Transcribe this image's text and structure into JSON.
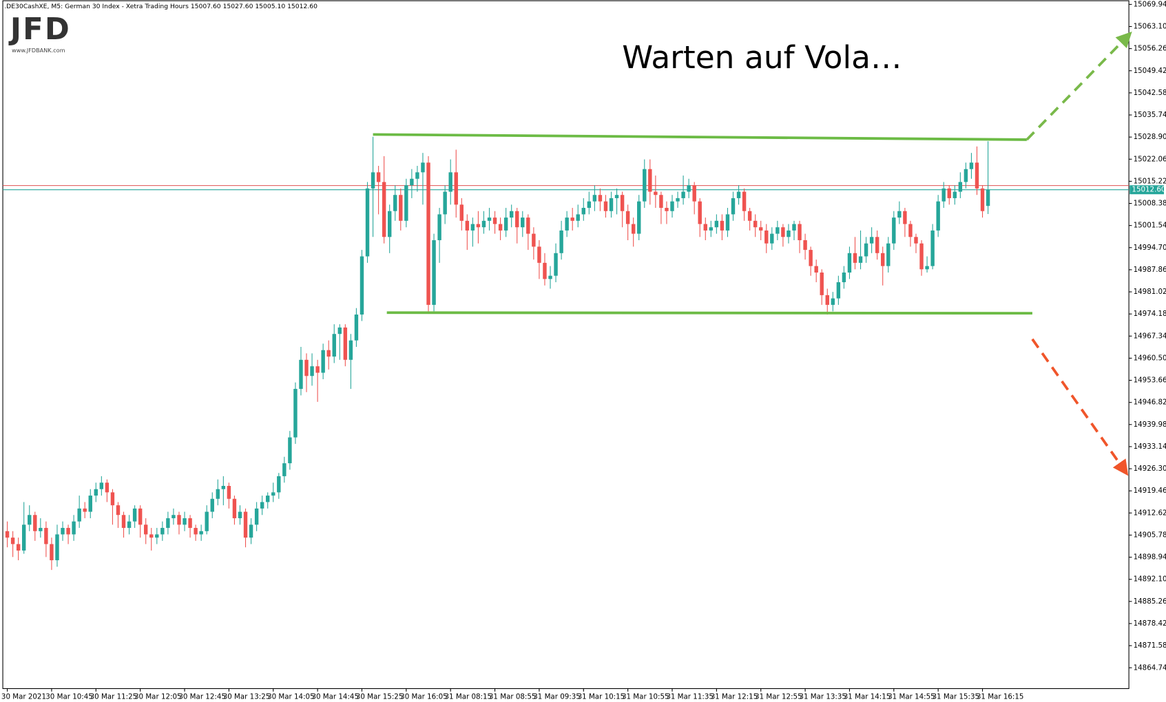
{
  "header": {
    "symbol_line": ".DE30CashXE, M5:  German 30 Index  - Xetra Trading Hours  15007.60 15027.60 15005.10 15012.60",
    "logo": "JFD",
    "logo_url": "www.JFDBANK.com"
  },
  "chart_data": {
    "type": "candlestick",
    "title": "Warten auf Vola…",
    "up_color": "#26a69a",
    "down_color": "#ef5350",
    "ylim": [
      14858.3,
      15071.3
    ],
    "yticks": [
      15069.94,
      {
        "value": 15063.1,
        "label": "15063.10"
      },
      15056.26,
      15049.42,
      15042.58,
      15035.74,
      {
        "value": 15028.9,
        "label": "15028.90"
      },
      15022.06,
      15015.22,
      15008.38,
      15001.54,
      {
        "value": 14994.7,
        "label": "14994.70"
      },
      14987.86,
      14981.02,
      14974.18,
      14967.34,
      {
        "value": 14960.5,
        "label": "14960.50"
      },
      14953.66,
      14946.82,
      14939.98,
      14933.14,
      {
        "value": 14926.3,
        "label": "14926.30"
      },
      14919.46,
      14912.62,
      14905.78,
      14898.94,
      {
        "value": 14892.1,
        "label": "14892.10"
      },
      14885.26,
      14878.42,
      14871.58,
      14864.74
    ],
    "categories": [
      "30 Mar 2021",
      null,
      null,
      null,
      null,
      null,
      null,
      null,
      "30 Mar 10:45",
      null,
      null,
      null,
      null,
      null,
      null,
      null,
      "30 Mar 11:25",
      null,
      null,
      null,
      null,
      null,
      null,
      null,
      "30 Mar 12:05",
      null,
      null,
      null,
      null,
      null,
      null,
      null,
      "30 Mar 12:45",
      null,
      null,
      null,
      null,
      null,
      null,
      null,
      "30 Mar 13:25",
      null,
      null,
      null,
      null,
      null,
      null,
      null,
      "30 Mar 14:05",
      null,
      null,
      null,
      null,
      null,
      null,
      null,
      "30 Mar 14:45",
      null,
      null,
      null,
      null,
      null,
      null,
      null,
      "30 Mar 15:25",
      null,
      null,
      null,
      null,
      null,
      null,
      null,
      "30 Mar 16:05",
      null,
      null,
      null,
      null,
      null,
      null,
      null,
      "31 Mar 08:15",
      null,
      null,
      null,
      null,
      null,
      null,
      null,
      "31 Mar 08:55",
      null,
      null,
      null,
      null,
      null,
      null,
      null,
      "31 Mar 09:35",
      null,
      null,
      null,
      null,
      null,
      null,
      null,
      "31 Mar 10:15",
      null,
      null,
      null,
      null,
      null,
      null,
      null,
      "31 Mar 10:55",
      null,
      null,
      null,
      null,
      null,
      null,
      null,
      "31 Mar 11:35",
      null,
      null,
      null,
      null,
      null,
      null,
      null,
      "31 Mar 12:15",
      null,
      null,
      null,
      null,
      null,
      null,
      null,
      "31 Mar 12:55",
      null,
      null,
      null,
      null,
      null,
      null,
      null,
      "31 Mar 13:35",
      null,
      null,
      null,
      null,
      null,
      null,
      null,
      "31 Mar 14:15",
      null,
      null,
      null,
      null,
      null,
      null,
      null,
      "31 Mar 14:55",
      null,
      null,
      null,
      null,
      null,
      null,
      null,
      "31 Mar 15:35",
      null,
      null,
      null,
      null,
      null,
      null,
      null,
      "31 Mar 16:15",
      null
    ],
    "open": [
      14907,
      14905,
      14903,
      14901,
      14909,
      14912,
      14907,
      14908,
      14903,
      14898,
      14906,
      14908,
      14906,
      14910,
      14914,
      14913,
      14918,
      14920,
      14922,
      14919,
      14915,
      14912,
      14908,
      14910,
      14914,
      14909,
      14906,
      14905,
      14906,
      14908,
      14911,
      14912,
      14909,
      14911,
      14908,
      14906,
      14907,
      14913,
      14917,
      14920,
      14921,
      14917,
      14911,
      14913,
      14905,
      14909,
      14914,
      14916,
      14918,
      14919,
      14924,
      14928,
      14936,
      14951,
      14960,
      14955,
      14958,
      14956,
      14963,
      14961,
      14968,
      14970,
      14960,
      14966,
      14974,
      14992,
      15013,
      15018,
      15015,
      14998,
      15006,
      15011,
      15003,
      15014,
      15016,
      15018,
      15021,
      14977,
      14997,
      15005,
      15012,
      15018,
      15008,
      15003,
      15000,
      15002,
      15001,
      15003,
      15004,
      15002,
      15000,
      15004,
      15006,
      15001,
      15004,
      14999,
      14995,
      14990,
      14985,
      14986,
      14993,
      15000,
      15004,
      15003,
      15005,
      15007,
      15009,
      15011,
      15009,
      15006,
      15010,
      15011,
      15006,
      15002,
      14999,
      15009,
      15019,
      15012,
      15011,
      15007,
      15006,
      15009,
      15010,
      15012,
      15014,
      15009,
      15002,
      15000,
      15001,
      15003,
      15000,
      15005,
      15010,
      15012,
      15006,
      15003,
      15001,
      15000,
      14996,
      14999,
      15001,
      14998,
      15000,
      15002,
      14997,
      14994,
      14989,
      14987,
      14980,
      14977,
      14979,
      14984,
      14987,
      14993,
      14990,
      14992,
      14996,
      14998,
      14993,
      14989,
      14996,
      15004,
      15006,
      15002,
      14998,
      14996,
      14988,
      14989,
      15000,
      15009,
      15013,
      15010,
      15012,
      15015,
      15019,
      15021,
      15013,
      15007.6
    ],
    "high": [
      14910,
      14907,
      14905,
      14916,
      14915,
      14913,
      14911,
      14910,
      14905,
      14909,
      14910,
      14909,
      14912,
      14918,
      14916,
      14920,
      14922,
      14924,
      14923,
      14920,
      14916,
      14913,
      14912,
      14915,
      14915,
      14911,
      14908,
      14908,
      14910,
      14913,
      14914,
      14913,
      14913,
      14912,
      14909,
      14909,
      14915,
      14919,
      14923,
      14924,
      14922,
      14918,
      14915,
      14914,
      14911,
      14916,
      14918,
      14919,
      14922,
      14925,
      14930,
      14938,
      14953,
      14964,
      14962,
      14962,
      14960,
      14965,
      14966,
      14971,
      14971,
      14971,
      14968,
      14976,
      14994,
      15015,
      15029,
      15020,
      15023,
      15008,
      15014,
      15013,
      15016,
      15019,
      15020,
      15024,
      15023,
      14999,
      15007,
      15014,
      15022,
      15025,
      15010,
      15005,
      15004,
      15006,
      15006,
      15007,
      15006,
      15004,
      15007,
      15008,
      15007,
      15006,
      15005,
      15001,
      14997,
      14993,
      14989,
      14996,
      15003,
      15006,
      15007,
      15008,
      15010,
      15012,
      15014,
      15013,
      15011,
      15012,
      15013,
      15012,
      15008,
      15004,
      15011,
      15022,
      15022,
      15017,
      15012,
      15009,
      15011,
      15012,
      15017,
      15016,
      15015,
      15010,
      15004,
      15003,
      15005,
      15005,
      15007,
      15012,
      15014,
      15013,
      15007,
      15005,
      15003,
      15002,
      15001,
      15003,
      15002,
      15002,
      15003,
      15003,
      14999,
      14995,
      14991,
      14988,
      14982,
      14981,
      14986,
      14989,
      14995,
      14998,
      15000,
      14998,
      15001,
      15000,
      14995,
      14998,
      15006,
      15009,
      15007,
      15003,
      14999,
      14997,
      14992,
      15002,
      15011,
      15015,
      15014,
      15014,
      15018,
      15021,
      15024,
      15026,
      15014,
      15027.6
    ],
    "low": [
      14902,
      14899,
      14898,
      14900,
      14907,
      14904,
      14905,
      14899,
      14895,
      14896,
      14904,
      14903,
      14904,
      14908,
      14911,
      14911,
      14916,
      14918,
      14916,
      14909,
      14908,
      14905,
      14906,
      14908,
      14905,
      14903,
      14901,
      14903,
      14904,
      14906,
      14909,
      14906,
      14907,
      14905,
      14904,
      14904,
      14906,
      14911,
      14915,
      14915,
      14914,
      14909,
      14909,
      14902,
      14903,
      14907,
      14912,
      14914,
      14916,
      14917,
      14922,
      14926,
      14934,
      14949,
      14950,
      14952,
      14947,
      14954,
      14957,
      14959,
      14960,
      14958,
      14951,
      14964,
      14972,
      14990,
      14998,
      15005,
      14996,
      14993,
      15003,
      15000,
      15001,
      15010,
      15012,
      15008,
      14975,
      14975,
      14990,
      15002,
      15008,
      15004,
      15000,
      14994,
      14995,
      14996,
      14999,
      15000,
      14999,
      14997,
      14998,
      15001,
      14996,
      14998,
      14994,
      14991,
      14985,
      14983,
      14982,
      14984,
      14991,
      14998,
      15000,
      15001,
      15003,
      15005,
      15006,
      15006,
      15004,
      15004,
      15005,
      15001,
      14997,
      14995,
      14997,
      15007,
      15008,
      15007,
      15002,
      15002,
      15004,
      15007,
      15008,
      15010,
      15005,
      14998,
      14997,
      14998,
      14999,
      14997,
      14998,
      15003,
      15008,
      15003,
      15000,
      14998,
      14997,
      14993,
      14994,
      14997,
      14995,
      14996,
      14997,
      14993,
      14991,
      14986,
      14984,
      14977,
      14974,
      14975,
      14977,
      14982,
      14985,
      14988,
      14988,
      14990,
      14993,
      14991,
      14983,
      14987,
      14994,
      15002,
      14998,
      14995,
      14993,
      14986,
      14987,
      14988,
      14998,
      15007,
      15008,
      15008,
      15010,
      15013,
      15016,
      15011,
      15004,
      15005.1
    ],
    "close": [
      14905,
      14903,
      14901,
      14909,
      14912,
      14907,
      14908,
      14903,
      14898,
      14906,
      14908,
      14906,
      14910,
      14914,
      14913,
      14918,
      14920,
      14922,
      14919,
      14915,
      14912,
      14908,
      14910,
      14914,
      14909,
      14906,
      14905,
      14906,
      14908,
      14911,
      14912,
      14909,
      14911,
      14908,
      14906,
      14907,
      14913,
      14917,
      14920,
      14921,
      14917,
      14911,
      14913,
      14905,
      14909,
      14914,
      14916,
      14918,
      14919,
      14924,
      14928,
      14936,
      14951,
      14960,
      14955,
      14958,
      14956,
      14963,
      14961,
      14968,
      14970,
      14960,
      14966,
      14974,
      14992,
      15013,
      15018,
      15015,
      14998,
      15006,
      15011,
      15003,
      15014,
      15016,
      15018,
      15021,
      14977,
      14997,
      15005,
      15012,
      15018,
      15008,
      15003,
      15000,
      15002,
      15001,
      15003,
      15004,
      15002,
      15000,
      15004,
      15006,
      15001,
      15004,
      14999,
      14995,
      14990,
      14985,
      14986,
      14993,
      15000,
      15004,
      15003,
      15005,
      15007,
      15009,
      15011,
      15009,
      15006,
      15010,
      15011,
      15006,
      15002,
      14999,
      15009,
      15019,
      15012,
      15011,
      15007,
      15006,
      15009,
      15010,
      15012,
      15014,
      15009,
      15002,
      15000,
      15001,
      15003,
      15000,
      15005,
      15010,
      15012,
      15006,
      15003,
      15001,
      15000,
      14996,
      14999,
      15001,
      14998,
      15000,
      15002,
      14997,
      14994,
      14989,
      14987,
      14980,
      14977,
      14979,
      14984,
      14987,
      14993,
      14990,
      14992,
      14996,
      14998,
      14993,
      14989,
      14996,
      15004,
      15006,
      15002,
      14998,
      14996,
      14988,
      14989,
      15000,
      15009,
      15013,
      15010,
      15012,
      15015,
      15019,
      15021,
      15013,
      15006,
      15012.6
    ],
    "ask_line": {
      "value": 15013.9,
      "color": "#e05050"
    },
    "last_price": {
      "value": 15012.6,
      "value_label": "15012.60",
      "color": "#26a69a"
    },
    "trendlines": [
      {
        "color": "#6cbb45",
        "dashed": false,
        "x": [
          66,
          184
        ],
        "y": [
          15029.7,
          15028.1
        ]
      },
      {
        "color": "#6cbb45",
        "dashed": false,
        "x": [
          68.5,
          185
        ],
        "y": [
          14974.6,
          14974.4
        ]
      },
      {
        "color": "#79b94a",
        "dashed": true,
        "arrow": true,
        "x": [
          184,
          202
        ],
        "y": [
          15028.1,
          15059.8
        ]
      },
      {
        "color": "#f0552a",
        "dashed": true,
        "arrow": true,
        "x": [
          185,
          201.5
        ],
        "y": [
          14966.4,
          14926.1
        ]
      }
    ]
  }
}
